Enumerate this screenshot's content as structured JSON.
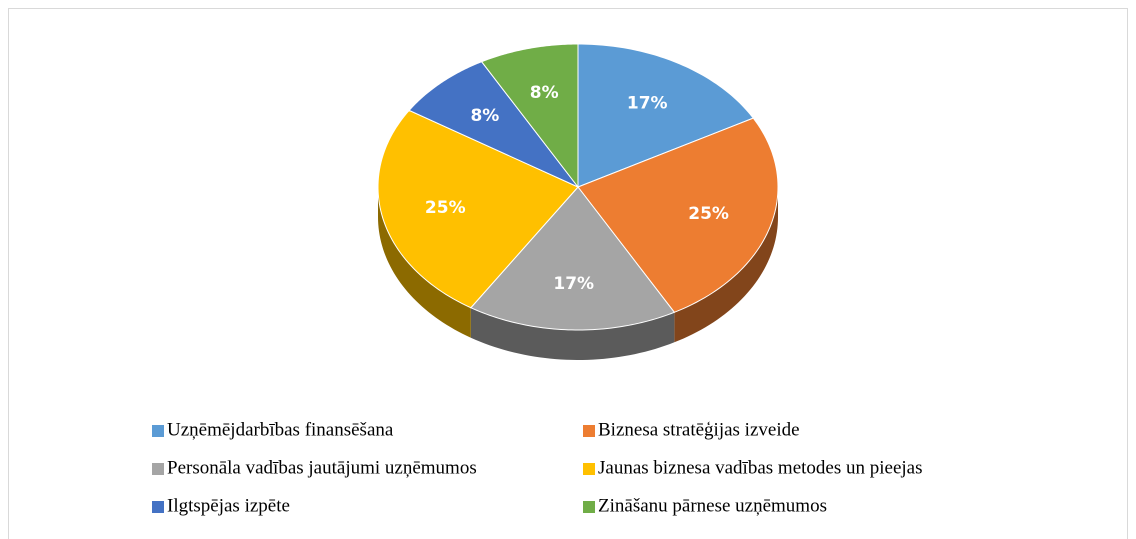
{
  "chart_data": {
    "type": "pie3d",
    "categories": [
      "Uzņēmējdarbības finansēšana",
      "Biznesa stratēģijas izveide",
      "Personāla vadības jautājumi uzņēmumos",
      "Jaunas biznesa vadības metodes un pieejas",
      "Ilgtspējas izpēte",
      "Zināšanu pārnese uzņēmumos"
    ],
    "values": [
      17,
      25,
      17,
      25,
      8,
      8
    ],
    "value_labels": [
      "17%",
      "25%",
      "17%",
      "25%",
      "8%",
      "8%"
    ],
    "colors": [
      "#5b9bd5",
      "#ed7d31",
      "#a5a5a5",
      "#ffc000",
      "#4472c4",
      "#70ad47"
    ],
    "legend": "bottom"
  }
}
